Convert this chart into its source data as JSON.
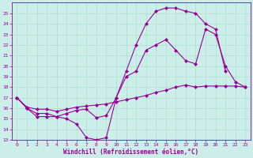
{
  "bg_color": "#cceee8",
  "grid_color": "#aaddcc",
  "line_color": "#990099",
  "xlabel": "Windchill (Refroidissement éolien,°C)",
  "xlim_min": -0.5,
  "xlim_max": 23.5,
  "ylim_min": 13,
  "ylim_max": 26,
  "yticks": [
    13,
    14,
    15,
    16,
    17,
    18,
    19,
    20,
    21,
    22,
    23,
    24,
    25
  ],
  "xticks": [
    0,
    1,
    2,
    3,
    4,
    5,
    6,
    7,
    8,
    9,
    10,
    11,
    12,
    13,
    14,
    15,
    16,
    17,
    18,
    19,
    20,
    21,
    22,
    23
  ],
  "line1_x": [
    0,
    1,
    2,
    3,
    4,
    5,
    6,
    7,
    8,
    9,
    10,
    11,
    12,
    13,
    14,
    15,
    16,
    17,
    18,
    19,
    20,
    21
  ],
  "line1_y": [
    17.0,
    16.0,
    15.2,
    15.2,
    15.2,
    15.0,
    14.5,
    13.2,
    13.0,
    13.2,
    17.0,
    19.5,
    22.0,
    24.0,
    25.2,
    25.5,
    25.5,
    25.2,
    25.0,
    24.0,
    23.5,
    19.5
  ],
  "line2_x": [
    0,
    1,
    2,
    3,
    4,
    5,
    6,
    7,
    8,
    9,
    10,
    11,
    12,
    13,
    14,
    15,
    16,
    17,
    18,
    19,
    20,
    21,
    22,
    23
  ],
  "line2_y": [
    17.0,
    16.1,
    15.9,
    15.9,
    15.7,
    15.9,
    16.1,
    16.2,
    16.3,
    16.4,
    16.6,
    16.8,
    17.0,
    17.2,
    17.5,
    17.7,
    18.0,
    18.2,
    18.0,
    18.1,
    18.1,
    18.1,
    18.1,
    18.0
  ],
  "line3_x": [
    0,
    1,
    2,
    3,
    4,
    5,
    6,
    7,
    8,
    9,
    10,
    11,
    12,
    13,
    14,
    15,
    16,
    17,
    18,
    19,
    20,
    21,
    22,
    23
  ],
  "line3_y": [
    17.0,
    16.0,
    15.5,
    15.5,
    15.2,
    15.5,
    15.8,
    15.9,
    15.1,
    15.3,
    17.0,
    19.0,
    19.5,
    21.5,
    22.0,
    22.5,
    21.5,
    20.5,
    20.2,
    23.5,
    23.0,
    20.0,
    18.5,
    18.0
  ],
  "marker": "D",
  "markersize": 2.0,
  "linewidth": 0.8,
  "tick_fontsize": 4.5,
  "xlabel_fontsize": 5.5
}
